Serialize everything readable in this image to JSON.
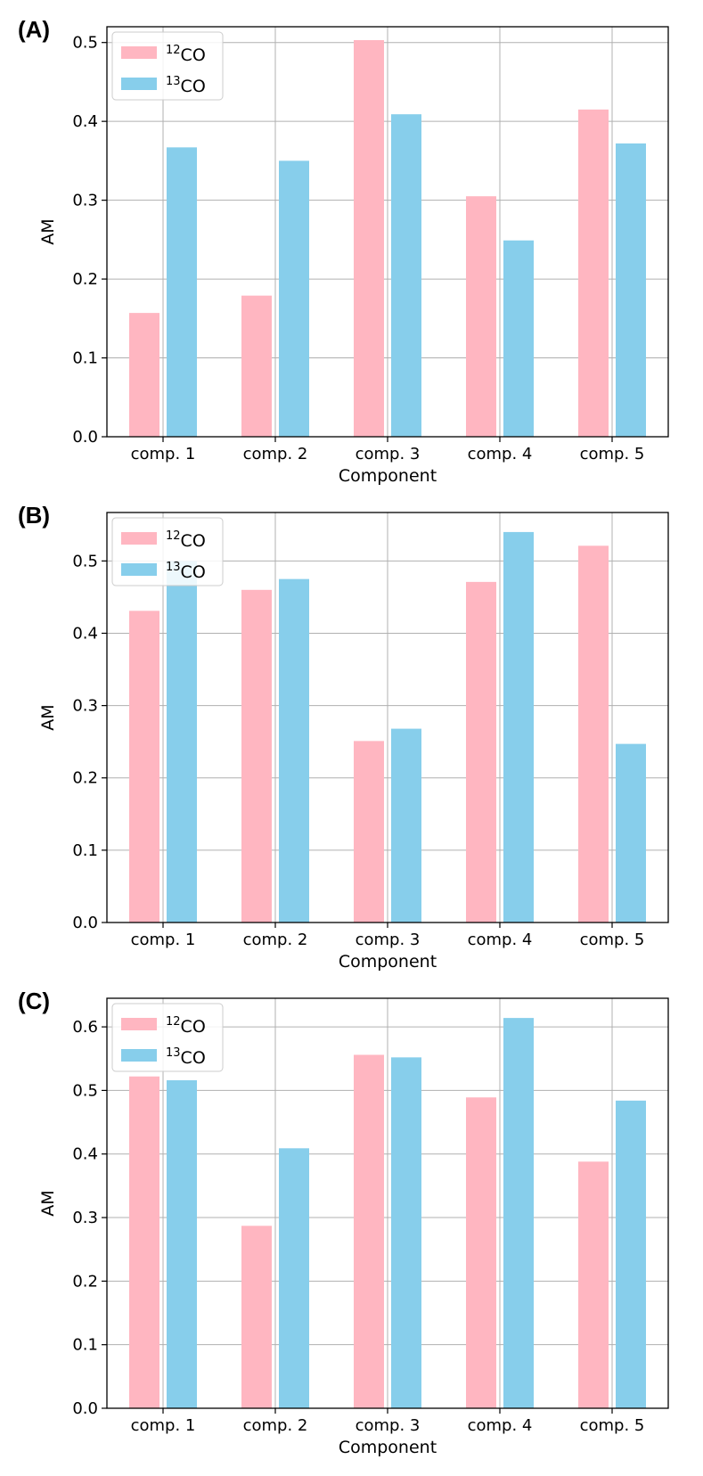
{
  "chart_data": [
    {
      "type": "bar",
      "panel_label": "(A)",
      "categories": [
        "comp. 1",
        "comp. 2",
        "comp. 3",
        "comp. 4",
        "comp. 5"
      ],
      "series": [
        {
          "name": "12CO",
          "sup": "12",
          "base": "CO",
          "color": "#ffb6c1",
          "values": [
            0.157,
            0.179,
            0.503,
            0.305,
            0.415
          ]
        },
        {
          "name": "13CO",
          "sup": "13",
          "base": "CO",
          "color": "#87ceeb",
          "values": [
            0.367,
            0.35,
            0.409,
            0.249,
            0.372
          ]
        }
      ],
      "xlabel": "Component",
      "ylabel": "AM",
      "ylim": [
        0,
        0.52
      ],
      "yticks": [
        0.0,
        0.1,
        0.2,
        0.3,
        0.4,
        0.5
      ],
      "ytick_labels": [
        "0.0",
        "0.1",
        "0.2",
        "0.3",
        "0.4",
        "0.5"
      ],
      "grid": true,
      "legend": "top-left"
    },
    {
      "type": "bar",
      "panel_label": "(B)",
      "categories": [
        "comp. 1",
        "comp. 2",
        "comp. 3",
        "comp. 4",
        "comp. 5"
      ],
      "series": [
        {
          "name": "12CO",
          "sup": "12",
          "base": "CO",
          "color": "#ffb6c1",
          "values": [
            0.431,
            0.46,
            0.251,
            0.471,
            0.521
          ]
        },
        {
          "name": "13CO",
          "sup": "13",
          "base": "CO",
          "color": "#87ceeb",
          "values": [
            0.5,
            0.475,
            0.268,
            0.54,
            0.247
          ]
        }
      ],
      "xlabel": "Component",
      "ylabel": "AM",
      "ylim": [
        0,
        0.567
      ],
      "yticks": [
        0.0,
        0.1,
        0.2,
        0.3,
        0.4,
        0.5
      ],
      "ytick_labels": [
        "0.0",
        "0.1",
        "0.2",
        "0.3",
        "0.4",
        "0.5"
      ],
      "grid": true,
      "legend": "top-left"
    },
    {
      "type": "bar",
      "panel_label": "(C)",
      "categories": [
        "comp. 1",
        "comp. 2",
        "comp. 3",
        "comp. 4",
        "comp. 5"
      ],
      "series": [
        {
          "name": "12CO",
          "sup": "12",
          "base": "CO",
          "color": "#ffb6c1",
          "values": [
            0.522,
            0.287,
            0.556,
            0.489,
            0.388
          ]
        },
        {
          "name": "13CO",
          "sup": "13",
          "base": "CO",
          "color": "#87ceeb",
          "values": [
            0.516,
            0.409,
            0.552,
            0.614,
            0.484
          ]
        }
      ],
      "xlabel": "Component",
      "ylabel": "AM",
      "ylim": [
        0,
        0.645
      ],
      "yticks": [
        0.0,
        0.1,
        0.2,
        0.3,
        0.4,
        0.5,
        0.6
      ],
      "ytick_labels": [
        "0.0",
        "0.1",
        "0.2",
        "0.3",
        "0.4",
        "0.5",
        "0.6"
      ],
      "grid": true,
      "legend": "top-left"
    }
  ]
}
